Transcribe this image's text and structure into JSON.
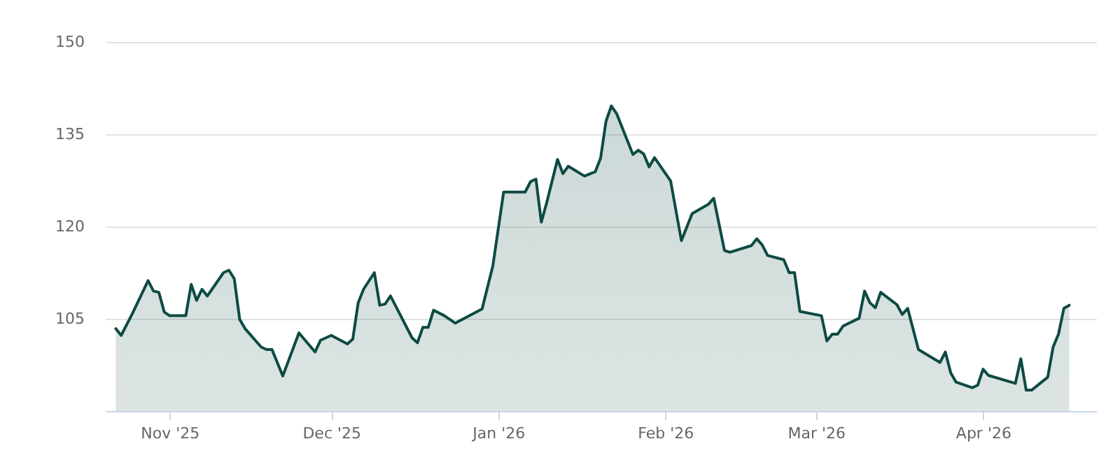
{
  "chart_data": {
    "type": "area",
    "color": "#0e4a44",
    "x": [
      "2025-10-22",
      "2025-10-23",
      "2025-10-25",
      "2025-10-28",
      "2025-10-29",
      "2025-10-30",
      "2025-10-31",
      "2025-11-01",
      "2025-11-04",
      "2025-11-05",
      "2025-11-06",
      "2025-11-07",
      "2025-11-08",
      "2025-11-11",
      "2025-11-12",
      "2025-11-13",
      "2025-11-14",
      "2025-11-15",
      "2025-11-18",
      "2025-11-19",
      "2025-11-20",
      "2025-11-22",
      "2025-11-25",
      "2025-11-28",
      "2025-11-29",
      "2025-12-01",
      "2025-12-04",
      "2025-12-05",
      "2025-12-06",
      "2025-12-07",
      "2025-12-09",
      "2025-12-10",
      "2025-12-11",
      "2025-12-12",
      "2025-12-16",
      "2025-12-17",
      "2025-12-18",
      "2025-12-19",
      "2025-12-20",
      "2025-12-22",
      "2025-12-24",
      "2025-12-29",
      "2025-12-31",
      "2026-01-02",
      "2026-01-06",
      "2026-01-07",
      "2026-01-08",
      "2026-01-09",
      "2026-01-10",
      "2026-01-12",
      "2026-01-13",
      "2026-01-14",
      "2026-01-17",
      "2026-01-19",
      "2026-01-20",
      "2026-01-21",
      "2026-01-22",
      "2026-01-23",
      "2026-01-26",
      "2026-01-27",
      "2026-01-28",
      "2026-01-29",
      "2026-01-30",
      "2026-02-02",
      "2026-02-04",
      "2026-02-06",
      "2026-02-09",
      "2026-02-10",
      "2026-02-12",
      "2026-02-13",
      "2026-02-17",
      "2026-02-18",
      "2026-02-19",
      "2026-02-20",
      "2026-02-23",
      "2026-02-24",
      "2026-02-25",
      "2026-02-26",
      "2026-03-02",
      "2026-03-03",
      "2026-03-04",
      "2026-03-05",
      "2026-03-06",
      "2026-03-09",
      "2026-03-10",
      "2026-03-11",
      "2026-03-12",
      "2026-03-13",
      "2026-03-16",
      "2026-03-17",
      "2026-03-18",
      "2026-03-20",
      "2026-03-24",
      "2026-03-25",
      "2026-03-26",
      "2026-03-27",
      "2026-03-30",
      "2026-03-31",
      "2026-04-01",
      "2026-04-02",
      "2026-04-07",
      "2026-04-08",
      "2026-04-09",
      "2026-04-10",
      "2026-04-13",
      "2026-04-14",
      "2026-04-15",
      "2026-04-16",
      "2026-04-17"
    ],
    "values": [
      103.4,
      102.3,
      105.7,
      111.2,
      109.5,
      109.3,
      106.1,
      105.5,
      105.5,
      110.6,
      108.0,
      109.8,
      108.7,
      112.5,
      112.9,
      111.5,
      104.9,
      103.4,
      100.4,
      100.0,
      100.0,
      95.7,
      102.7,
      99.6,
      101.5,
      102.3,
      100.9,
      101.7,
      107.6,
      109.8,
      112.5,
      107.2,
      107.4,
      108.7,
      101.9,
      101.1,
      103.6,
      103.6,
      106.4,
      105.5,
      104.3,
      106.6,
      113.6,
      125.6,
      125.6,
      127.3,
      127.7,
      120.7,
      123.9,
      130.9,
      128.6,
      129.8,
      128.2,
      128.9,
      131.1,
      137.1,
      139.6,
      138.3,
      131.7,
      132.4,
      131.8,
      129.7,
      131.2,
      127.4,
      117.7,
      122.1,
      123.6,
      124.6,
      116.1,
      115.8,
      116.9,
      118.0,
      117.0,
      115.3,
      114.6,
      112.5,
      112.5,
      106.2,
      105.5,
      101.4,
      102.5,
      102.5,
      103.8,
      105.1,
      109.5,
      107.6,
      106.8,
      109.3,
      107.3,
      105.7,
      106.7,
      100.0,
      97.9,
      99.6,
      96.2,
      94.7,
      93.8,
      94.2,
      96.8,
      95.8,
      94.5,
      98.5,
      93.4,
      93.4,
      95.5,
      100.4,
      102.5,
      106.7,
      107.2
    ],
    "xlim": [
      "2025-10-20",
      "2026-04-22"
    ],
    "xticks": [
      {
        "value": "2025-11-01",
        "label": "Nov '25"
      },
      {
        "value": "2025-12-01",
        "label": "Dec '25"
      },
      {
        "value": "2026-01-01",
        "label": "Jan '26"
      },
      {
        "value": "2026-02-01",
        "label": "Feb '26"
      },
      {
        "value": "2026-03-01",
        "label": "Mar '26"
      },
      {
        "value": "2026-04-01",
        "label": "Apr '26"
      }
    ],
    "ylim": [
      90,
      150
    ],
    "yticks": [
      105,
      120,
      135,
      150
    ],
    "grid": "y",
    "line_style": "solid"
  }
}
